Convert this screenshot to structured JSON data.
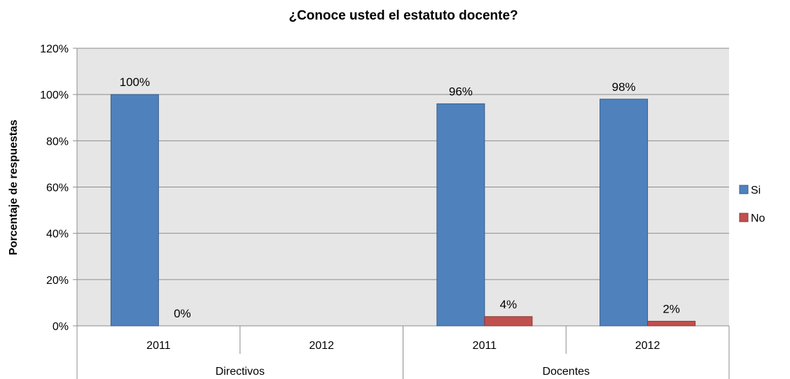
{
  "chart_data": {
    "type": "bar",
    "title": "¿Conoce usted el estatuto docente?",
    "xlabel": "",
    "ylabel": "Porcentaje de respuestas",
    "ylim": [
      0,
      120
    ],
    "y_ticks": [
      0,
      20,
      40,
      60,
      80,
      100,
      120
    ],
    "y_tick_labels": [
      "0%",
      "20%",
      "40%",
      "60%",
      "80%",
      "100%",
      "120%"
    ],
    "grid": true,
    "legend_position": "right",
    "groups": [
      {
        "label": "Directivos",
        "categories": [
          "2011",
          "2012"
        ]
      },
      {
        "label": "Docentes",
        "categories": [
          "2011",
          "2012"
        ]
      }
    ],
    "categories": [
      "2011",
      "2012",
      "2011",
      "2012"
    ],
    "series": [
      {
        "name": "Si",
        "color": "#4F81BD",
        "values": [
          100,
          null,
          96,
          98
        ],
        "labels": [
          "100%",
          "",
          "96%",
          "98%"
        ]
      },
      {
        "name": "No",
        "color": "#C0504D",
        "values": [
          0,
          null,
          4,
          2
        ],
        "labels": [
          "0%",
          "",
          "4%",
          "2%"
        ]
      }
    ]
  },
  "colors": {
    "plot_background": "#E6E6E6",
    "grid": "#8C8C8C",
    "axis": "#8C8C8C",
    "text": "#000000"
  }
}
